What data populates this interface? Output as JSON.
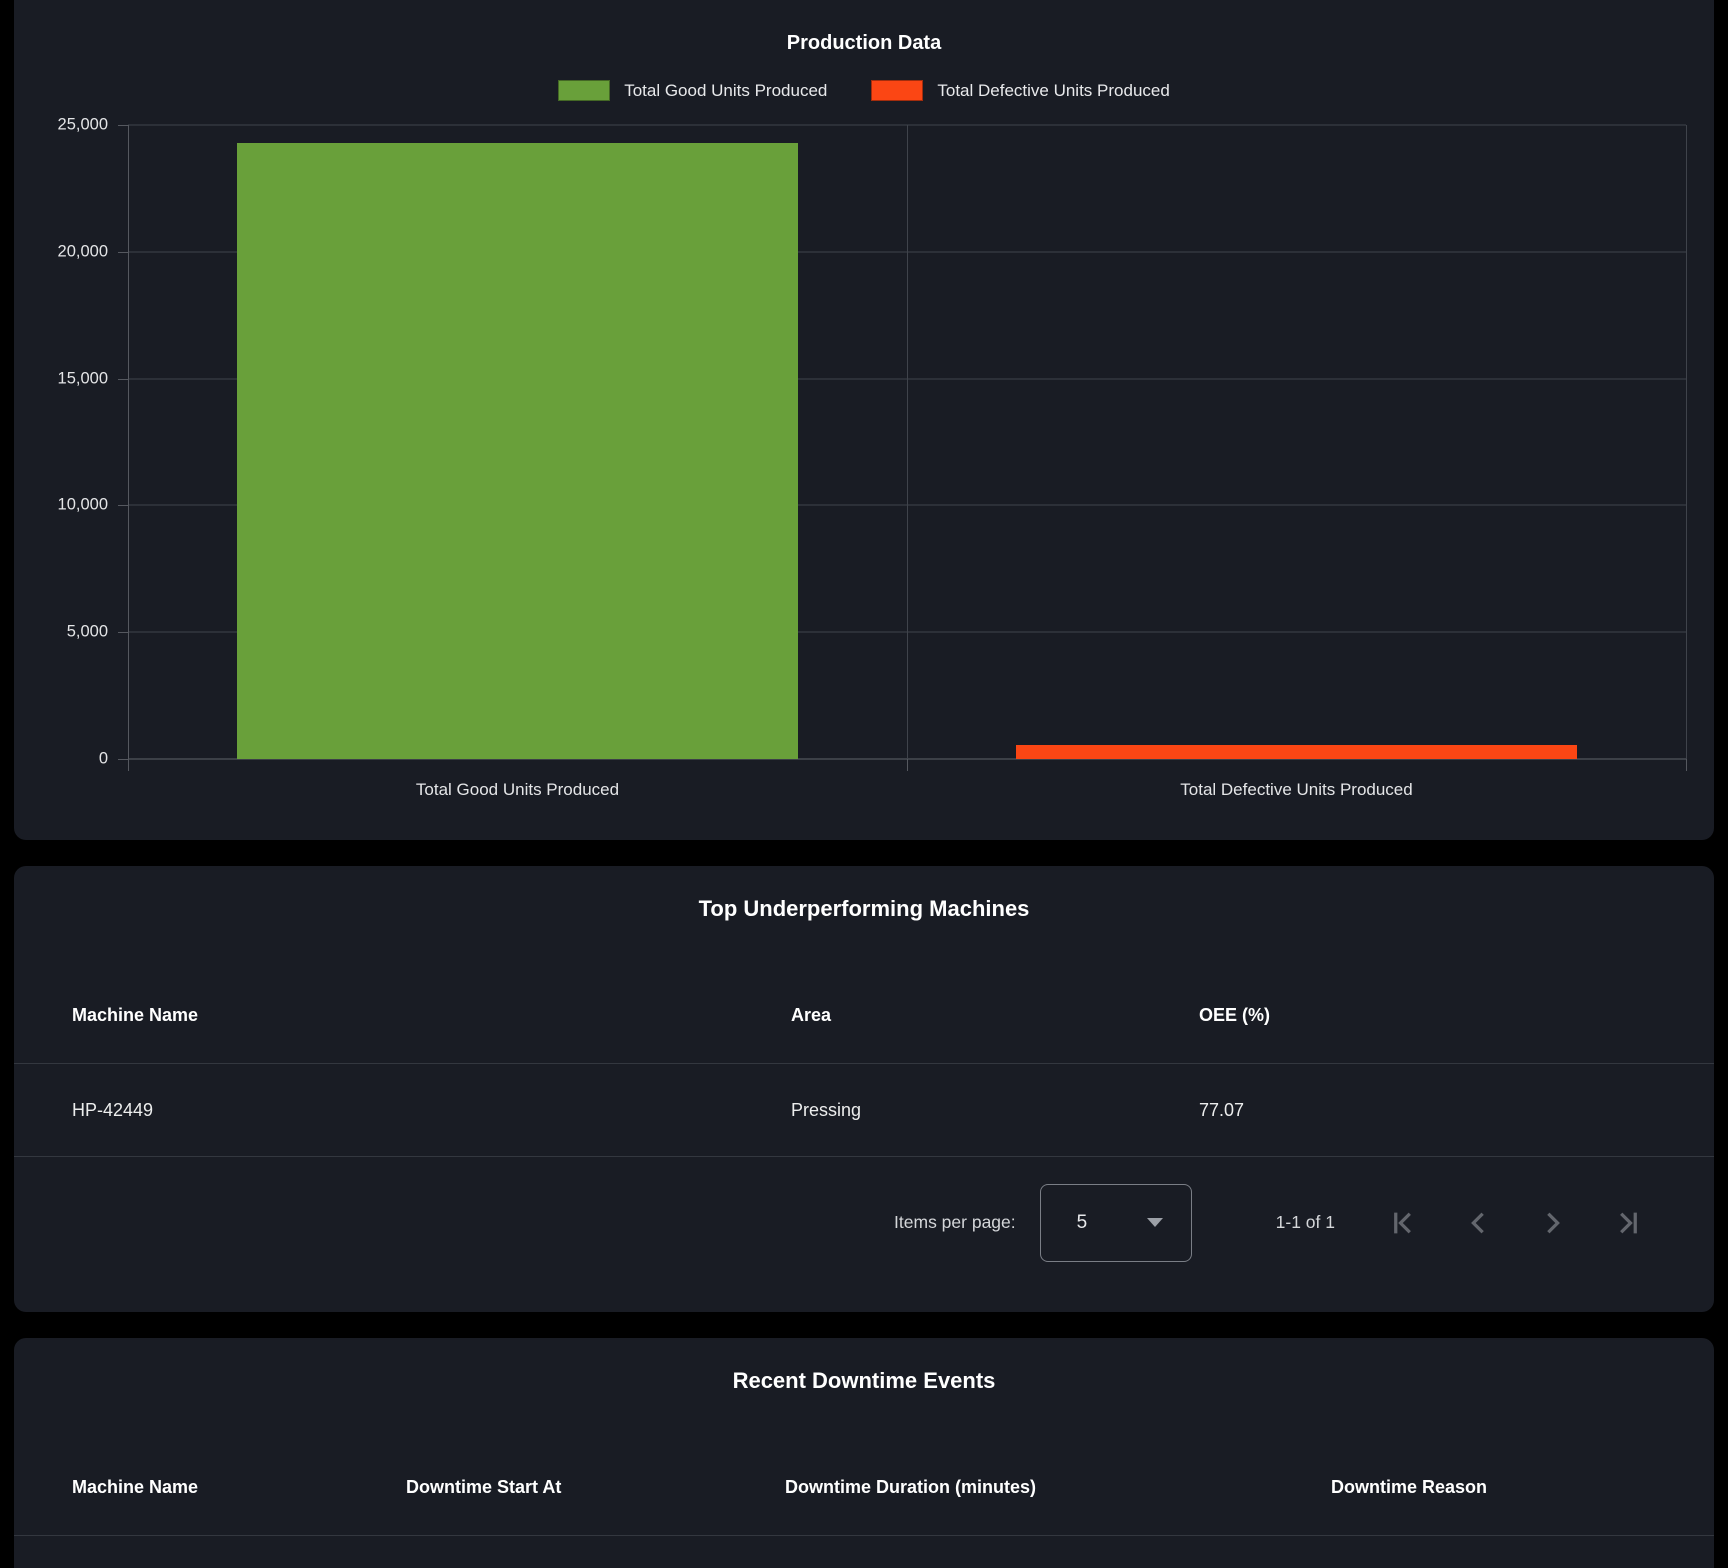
{
  "page": {
    "background": "#000000",
    "card_background": "#191c24"
  },
  "chart_data": {
    "type": "bar",
    "title": "Production Data",
    "categories": [
      "Total Good Units Produced",
      "Total Defective Units Produced"
    ],
    "values": [
      24290,
      550
    ],
    "series_colors": [
      "#69a03a",
      "#fb4614"
    ],
    "legend": [
      {
        "label": "Total Good Units Produced",
        "color": "#69a03a"
      },
      {
        "label": "Total Defective Units Produced",
        "color": "#fb4614"
      }
    ],
    "legend_position": "top",
    "xlabel": "",
    "ylabel": "",
    "ylim": [
      0,
      25000
    ],
    "ytick_step": 5000,
    "ytick_labels": [
      "0",
      "5,000",
      "10,000",
      "15,000",
      "20,000",
      "25,000"
    ],
    "grid": true
  },
  "underperforming": {
    "title": "Top Underperforming Machines",
    "columns": [
      "Machine Name",
      "Area",
      "OEE (%)"
    ],
    "rows": [
      [
        "HP-42449",
        "Pressing",
        "77.07"
      ]
    ],
    "paginator": {
      "items_per_page_label": "Items per page:",
      "page_size": "5",
      "range_label": "1-1 of 1"
    }
  },
  "downtime": {
    "title": "Recent Downtime Events",
    "columns": [
      "Machine Name",
      "Downtime Start At",
      "Downtime Duration (minutes)",
      "Downtime Reason"
    ],
    "rows": []
  }
}
